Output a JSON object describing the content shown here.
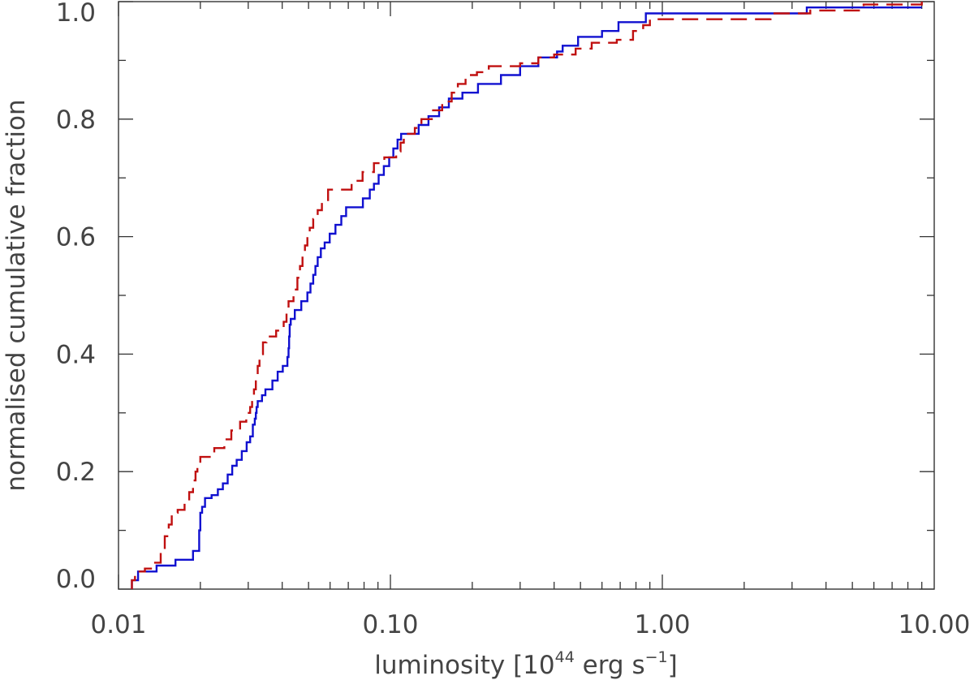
{
  "chart_data": {
    "type": "line",
    "title": "",
    "xlabel": {
      "prefix": "luminosity [10",
      "exponent": "44",
      "middle": " erg s",
      "exponent2": "−1",
      "suffix": "]"
    },
    "ylabel": "normalised cumulative fraction",
    "x_scale": "log",
    "xlim": [
      0.01,
      10
    ],
    "ylim": [
      0.0,
      1.0
    ],
    "x_ticks": [
      {
        "value": 0.01,
        "label": "0.01"
      },
      {
        "value": 0.1,
        "label": "0.10"
      },
      {
        "value": 1,
        "label": "1.00"
      },
      {
        "value": 10,
        "label": "10.00"
      }
    ],
    "y_ticks": [
      {
        "value": 0.0,
        "label": "0.0"
      },
      {
        "value": 0.2,
        "label": "0.2"
      },
      {
        "value": 0.4,
        "label": "0.4"
      },
      {
        "value": 0.6,
        "label": "0.6"
      },
      {
        "value": 0.8,
        "label": "0.8"
      },
      {
        "value": 1.0,
        "label": "1.0"
      }
    ],
    "grid": false,
    "series": [
      {
        "color": "#1010d0",
        "style": "solid",
        "step": true,
        "points": [
          [
            0.0112,
            0.0
          ],
          [
            0.0112,
            0.015
          ],
          [
            0.0118,
            0.03
          ],
          [
            0.0138,
            0.04
          ],
          [
            0.0162,
            0.05
          ],
          [
            0.0188,
            0.065
          ],
          [
            0.0198,
            0.1
          ],
          [
            0.02,
            0.13
          ],
          [
            0.0203,
            0.14
          ],
          [
            0.0208,
            0.155
          ],
          [
            0.022,
            0.16
          ],
          [
            0.0232,
            0.17
          ],
          [
            0.0242,
            0.18
          ],
          [
            0.0252,
            0.195
          ],
          [
            0.0262,
            0.21
          ],
          [
            0.0272,
            0.22
          ],
          [
            0.0284,
            0.235
          ],
          [
            0.0296,
            0.25
          ],
          [
            0.0305,
            0.26
          ],
          [
            0.0312,
            0.28
          ],
          [
            0.0317,
            0.29
          ],
          [
            0.032,
            0.3
          ],
          [
            0.0322,
            0.31
          ],
          [
            0.0325,
            0.32
          ],
          [
            0.0337,
            0.33
          ],
          [
            0.0347,
            0.34
          ],
          [
            0.0368,
            0.355
          ],
          [
            0.0385,
            0.37
          ],
          [
            0.0402,
            0.38
          ],
          [
            0.0418,
            0.395
          ],
          [
            0.0422,
            0.41
          ],
          [
            0.0424,
            0.43
          ],
          [
            0.0426,
            0.45
          ],
          [
            0.043,
            0.46
          ],
          [
            0.0445,
            0.475
          ],
          [
            0.047,
            0.49
          ],
          [
            0.0495,
            0.505
          ],
          [
            0.0508,
            0.52
          ],
          [
            0.052,
            0.535
          ],
          [
            0.053,
            0.55
          ],
          [
            0.054,
            0.565
          ],
          [
            0.0555,
            0.58
          ],
          [
            0.0573,
            0.59
          ],
          [
            0.0598,
            0.605
          ],
          [
            0.0628,
            0.62
          ],
          [
            0.066,
            0.635
          ],
          [
            0.0687,
            0.65
          ],
          [
            0.0792,
            0.665
          ],
          [
            0.084,
            0.68
          ],
          [
            0.087,
            0.69
          ],
          [
            0.0905,
            0.705
          ],
          [
            0.0946,
            0.72
          ],
          [
            0.099,
            0.735
          ],
          [
            0.1025,
            0.75
          ],
          [
            0.1062,
            0.765
          ],
          [
            0.1095,
            0.775
          ],
          [
            0.127,
            0.79
          ],
          [
            0.138,
            0.805
          ],
          [
            0.151,
            0.82
          ],
          [
            0.164,
            0.835
          ],
          [
            0.184,
            0.845
          ],
          [
            0.21,
            0.86
          ],
          [
            0.255,
            0.875
          ],
          [
            0.3,
            0.89
          ],
          [
            0.35,
            0.905
          ],
          [
            0.41,
            0.915
          ],
          [
            0.43,
            0.925
          ],
          [
            0.49,
            0.94
          ],
          [
            0.6,
            0.95
          ],
          [
            0.69,
            0.965
          ],
          [
            0.87,
            0.98
          ],
          [
            3.4,
            0.99
          ],
          [
            9.0,
            0.99
          ]
        ]
      },
      {
        "color": "#c01010",
        "style": "dashed",
        "step": true,
        "points": [
          [
            0.0112,
            0.0
          ],
          [
            0.0112,
            0.015
          ],
          [
            0.0115,
            0.03
          ],
          [
            0.0125,
            0.035
          ],
          [
            0.0135,
            0.045
          ],
          [
            0.0143,
            0.065
          ],
          [
            0.0148,
            0.09
          ],
          [
            0.0153,
            0.11
          ],
          [
            0.0157,
            0.13
          ],
          [
            0.0165,
            0.135
          ],
          [
            0.0175,
            0.15
          ],
          [
            0.0182,
            0.165
          ],
          [
            0.0188,
            0.185
          ],
          [
            0.0192,
            0.2
          ],
          [
            0.0195,
            0.215
          ],
          [
            0.02,
            0.225
          ],
          [
            0.0225,
            0.24
          ],
          [
            0.0245,
            0.255
          ],
          [
            0.026,
            0.27
          ],
          [
            0.028,
            0.285
          ],
          [
            0.0295,
            0.3
          ],
          [
            0.0305,
            0.31
          ],
          [
            0.031,
            0.33
          ],
          [
            0.0315,
            0.34
          ],
          [
            0.032,
            0.36
          ],
          [
            0.0325,
            0.38
          ],
          [
            0.033,
            0.4
          ],
          [
            0.034,
            0.42
          ],
          [
            0.035,
            0.43
          ],
          [
            0.038,
            0.44
          ],
          [
            0.0405,
            0.455
          ],
          [
            0.0415,
            0.47
          ],
          [
            0.0422,
            0.49
          ],
          [
            0.044,
            0.51
          ],
          [
            0.0455,
            0.53
          ],
          [
            0.0465,
            0.55
          ],
          [
            0.0475,
            0.57
          ],
          [
            0.0485,
            0.585
          ],
          [
            0.0495,
            0.6
          ],
          [
            0.0505,
            0.615
          ],
          [
            0.052,
            0.63
          ],
          [
            0.054,
            0.645
          ],
          [
            0.056,
            0.66
          ],
          [
            0.059,
            0.68
          ],
          [
            0.072,
            0.695
          ],
          [
            0.079,
            0.71
          ],
          [
            0.087,
            0.725
          ],
          [
            0.095,
            0.735
          ],
          [
            0.105,
            0.745
          ],
          [
            0.109,
            0.76
          ],
          [
            0.112,
            0.775
          ],
          [
            0.123,
            0.785
          ],
          [
            0.13,
            0.8
          ],
          [
            0.142,
            0.815
          ],
          [
            0.155,
            0.83
          ],
          [
            0.168,
            0.845
          ],
          [
            0.177,
            0.86
          ],
          [
            0.189,
            0.875
          ],
          [
            0.208,
            0.88
          ],
          [
            0.23,
            0.89
          ],
          [
            0.3,
            0.895
          ],
          [
            0.35,
            0.905
          ],
          [
            0.4,
            0.91
          ],
          [
            0.48,
            0.92
          ],
          [
            0.55,
            0.93
          ],
          [
            0.68,
            0.935
          ],
          [
            0.78,
            0.95
          ],
          [
            0.85,
            0.96
          ],
          [
            0.9,
            0.97
          ],
          [
            2.5,
            0.98
          ],
          [
            3.5,
            0.985
          ],
          [
            5.5,
            0.995
          ],
          [
            9.0,
            1.0
          ]
        ]
      }
    ]
  }
}
